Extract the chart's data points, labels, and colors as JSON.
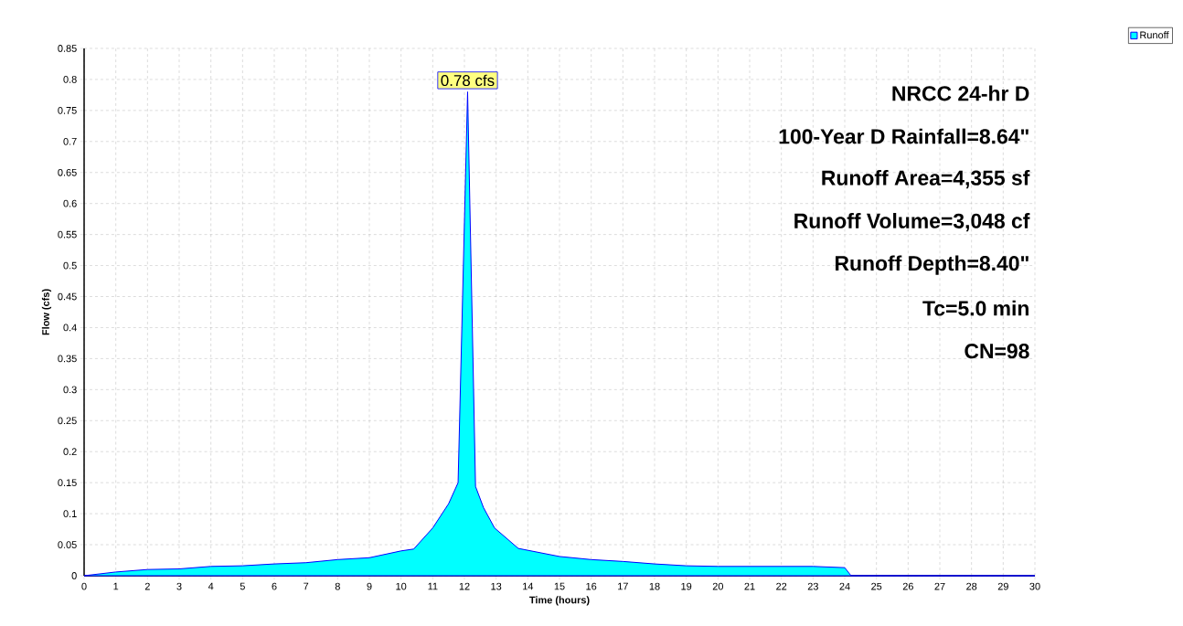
{
  "chart_data": {
    "type": "area",
    "xlabel": "Time  (hours)",
    "ylabel": "Flow  (cfs)",
    "x": [
      0,
      1,
      2,
      3,
      4,
      5,
      6,
      7,
      8,
      9,
      10,
      10.4,
      11,
      11.5,
      11.8,
      12.1,
      12.35,
      12.6,
      12.95,
      13.7,
      15,
      16,
      17,
      18,
      19,
      20,
      21,
      22,
      23,
      24,
      24.2,
      25,
      26,
      27,
      28,
      29,
      30
    ],
    "series": [
      {
        "name": "Runoff",
        "color": "#00ffff",
        "values": [
          0,
          0.006,
          0.01,
          0.011,
          0.015,
          0.016,
          0.019,
          0.021,
          0.026,
          0.029,
          0.04,
          0.043,
          0.077,
          0.116,
          0.15,
          0.78,
          0.144,
          0.11,
          0.077,
          0.044,
          0.031,
          0.026,
          0.023,
          0.019,
          0.016,
          0.015,
          0.015,
          0.015,
          0.015,
          0.013,
          0,
          0,
          0,
          0,
          0,
          0,
          0
        ]
      }
    ],
    "xlim": [
      0,
      30
    ],
    "xticks": [
      0,
      1,
      2,
      3,
      4,
      5,
      6,
      7,
      8,
      9,
      10,
      11,
      12,
      13,
      14,
      15,
      16,
      17,
      18,
      19,
      20,
      21,
      22,
      23,
      24,
      25,
      26,
      27,
      28,
      29,
      30
    ],
    "ylim": [
      0,
      0.85
    ],
    "yticks": [
      0,
      0.05,
      0.1,
      0.15,
      0.2,
      0.25,
      0.3,
      0.35,
      0.4,
      0.45,
      0.5,
      0.55,
      0.6,
      0.65,
      0.7,
      0.75,
      0.8,
      0.85
    ],
    "grid": true,
    "legend": "top right",
    "annotations": [
      {
        "text": "0.78 cfs",
        "x": 12.1,
        "y": 0.78
      },
      "NRCC 24-hr D",
      "100-Year D Rainfall=8.64\"",
      "Runoff Area=4,355 sf",
      "Runoff Volume=3,048 cf",
      "Runoff Depth=8.40\"",
      "Tc=5.0 min",
      "CN=98"
    ]
  }
}
